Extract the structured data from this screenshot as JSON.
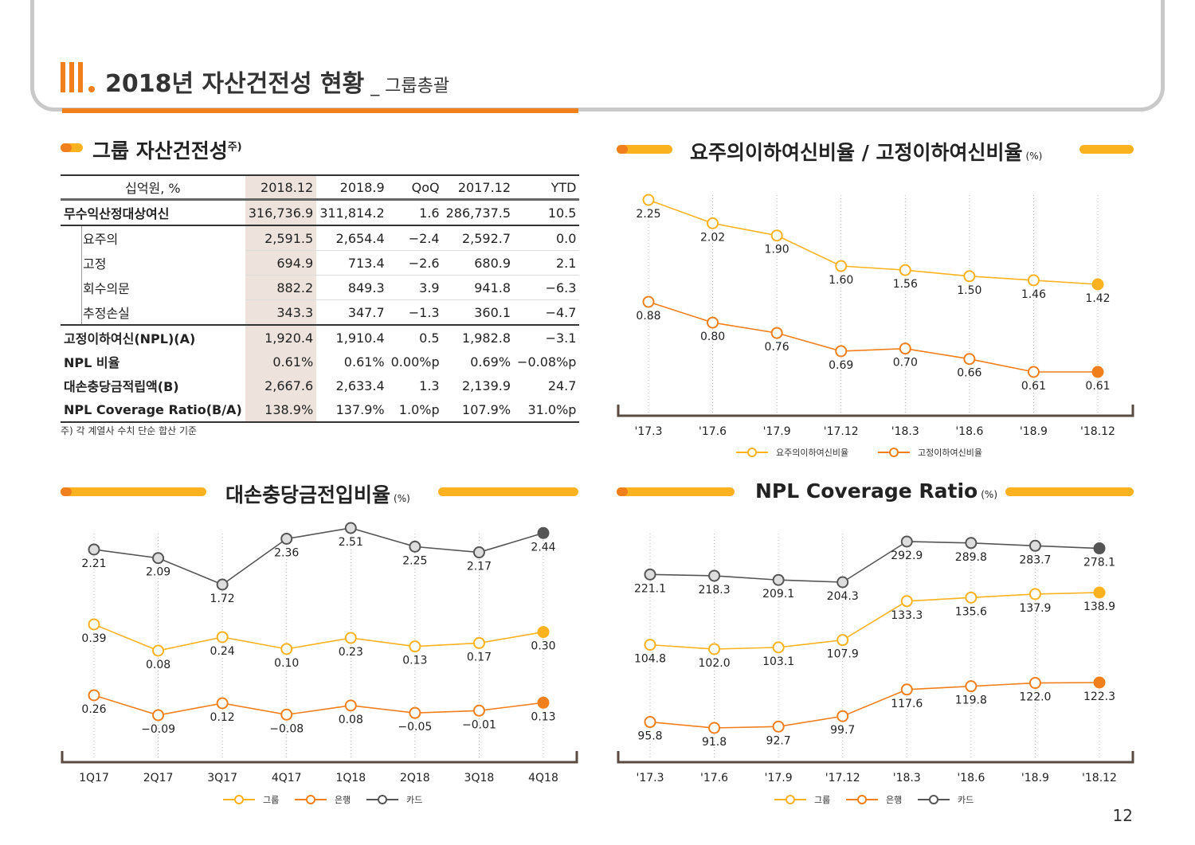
{
  "header": {
    "roman": "III.",
    "title": "2018년 자산건전성 현황",
    "subtitle": "_ 그룹총괄"
  },
  "table_section": {
    "title": "그룹 자산건전성",
    "title_sup": "주)",
    "columns": [
      "십억원, %",
      "2018.12",
      "2018.9",
      "QoQ",
      "2017.12",
      "YTD"
    ],
    "rows": [
      {
        "label": "무수익산정대상여신",
        "values": [
          "316,736.9",
          "311,814.2",
          "1.6",
          "286,737.5",
          "10.5"
        ]
      },
      {
        "label": "요주의",
        "values": [
          "2,591.5",
          "2,654.4",
          "−2.4",
          "2,592.7",
          "0.0"
        ]
      },
      {
        "label": "고정",
        "values": [
          "694.9",
          "713.4",
          "−2.6",
          "680.9",
          "2.1"
        ]
      },
      {
        "label": "회수의문",
        "values": [
          "882.2",
          "849.3",
          "3.9",
          "941.8",
          "−6.3"
        ]
      },
      {
        "label": "추정손실",
        "values": [
          "343.3",
          "347.7",
          "−1.3",
          "360.1",
          "−4.7"
        ]
      },
      {
        "label": "고정이하여신(NPL)(A)",
        "values": [
          "1,920.4",
          "1,910.4",
          "0.5",
          "1,982.8",
          "−3.1"
        ]
      },
      {
        "label": "NPL 비율",
        "values": [
          "0.61%",
          "0.61%",
          "0.00%p",
          "0.69%",
          "−0.08%p"
        ]
      },
      {
        "label": "대손충당금적립액(B)",
        "values": [
          "2,667.6",
          "2,633.4",
          "1.3",
          "2,139.9",
          "24.7"
        ]
      },
      {
        "label": "NPL Coverage Ratio(B/A)",
        "values": [
          "138.9%",
          "137.9%",
          "1.0%p",
          "107.9%",
          "31.0%p"
        ]
      }
    ],
    "footnote": "주) 각 계열사 수치 단순 합산 기준"
  },
  "colors": {
    "orange": "#f07f1c",
    "yellow": "#fbb21f",
    "gray": "#555555",
    "highlight": "#ede3dc"
  },
  "page_number": "12",
  "chart_data": [
    {
      "type": "line",
      "title": "요주의이하여신비율 / 고정이하여신비율",
      "unit": "(%)",
      "x": [
        "'17.3",
        "'17.6",
        "'17.9",
        "'17.12",
        "'18.3",
        "'18.6",
        "'18.9",
        "'18.12"
      ],
      "series": [
        {
          "name": "요주의이하여신비율",
          "color": "#fbb21f",
          "values": [
            2.25,
            2.02,
            1.9,
            1.6,
            1.56,
            1.5,
            1.46,
            1.42
          ],
          "labels": [
            "2.25",
            "2.02",
            "1.90",
            "1.60",
            "1.56",
            "1.50",
            "1.46",
            "1.42"
          ]
        },
        {
          "name": "고정이하여신비율",
          "color": "#f07f1c",
          "values": [
            0.88,
            0.8,
            0.76,
            0.69,
            0.7,
            0.66,
            0.61,
            0.61
          ],
          "labels": [
            "0.88",
            "0.80",
            "0.76",
            "0.69",
            "0.70",
            "0.66",
            "0.61",
            "0.61"
          ]
        }
      ]
    },
    {
      "type": "line",
      "title": "대손충당금전입비율",
      "unit": "(%)",
      "x": [
        "1Q17",
        "2Q17",
        "3Q17",
        "4Q17",
        "1Q18",
        "2Q18",
        "3Q18",
        "4Q18"
      ],
      "series": [
        {
          "name": "카드",
          "color": "#555555",
          "values": [
            2.21,
            2.09,
            1.72,
            2.36,
            2.51,
            2.25,
            2.17,
            2.44
          ],
          "labels": [
            "2.21",
            "2.09",
            "1.72",
            "2.36",
            "2.51",
            "2.25",
            "2.17",
            "2.44"
          ]
        },
        {
          "name": "그룹",
          "color": "#fbb21f",
          "values": [
            0.39,
            0.08,
            0.24,
            0.1,
            0.23,
            0.13,
            0.17,
            0.3
          ],
          "labels": [
            "0.39",
            "0.08",
            "0.24",
            "0.10",
            "0.23",
            "0.13",
            "0.17",
            "0.30"
          ]
        },
        {
          "name": "은행",
          "color": "#f07f1c",
          "values": [
            0.26,
            -0.09,
            0.12,
            -0.08,
            0.08,
            -0.05,
            -0.01,
            0.13
          ],
          "labels": [
            "0.26",
            "−0.09",
            "0.12",
            "−0.08",
            "0.08",
            "−0.05",
            "−0.01",
            "0.13"
          ]
        }
      ]
    },
    {
      "type": "line",
      "title": "NPL Coverage Ratio",
      "unit": "(%)",
      "x": [
        "'17.3",
        "'17.6",
        "'17.9",
        "'17.12",
        "'18.3",
        "'18.6",
        "'18.9",
        "'18.12"
      ],
      "series": [
        {
          "name": "카드",
          "color": "#555555",
          "values": [
            221.1,
            218.3,
            209.1,
            204.3,
            292.9,
            289.8,
            283.7,
            278.1
          ],
          "labels": [
            "221.1",
            "218.3",
            "209.1",
            "204.3",
            "292.9",
            "289.8",
            "283.7",
            "278.1"
          ]
        },
        {
          "name": "그룹",
          "color": "#fbb21f",
          "values": [
            104.8,
            102.0,
            103.1,
            107.9,
            133.3,
            135.6,
            137.9,
            138.9
          ],
          "labels": [
            "104.8",
            "102.0",
            "103.1",
            "107.9",
            "133.3",
            "135.6",
            "137.9",
            "138.9"
          ]
        },
        {
          "name": "은행",
          "color": "#f07f1c",
          "values": [
            95.8,
            91.8,
            92.7,
            99.7,
            117.6,
            119.8,
            122.0,
            122.3
          ],
          "labels": [
            "95.8",
            "91.8",
            "92.7",
            "99.7",
            "117.6",
            "119.8",
            "122.0",
            "122.3"
          ]
        }
      ]
    }
  ]
}
